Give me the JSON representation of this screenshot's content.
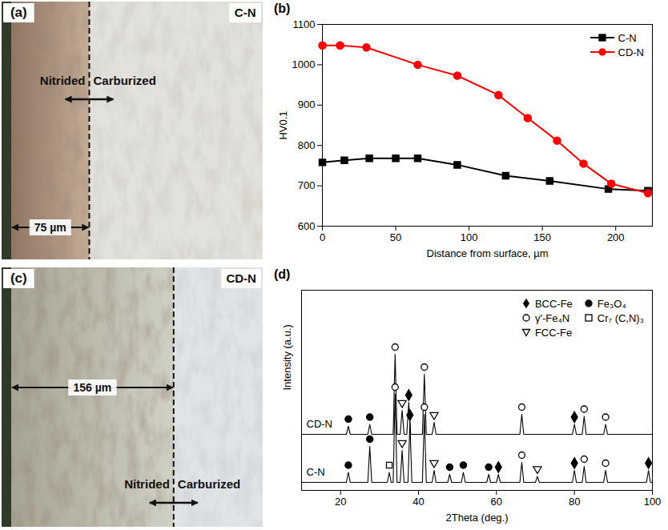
{
  "panels": [
    {
      "letter": "(a)",
      "sample": "C-N",
      "left_label": "Nitrided",
      "right_label": "Carburized",
      "depth": 75,
      "depth_label": "75 µm"
    },
    {
      "letter": "(c)",
      "sample": "CD-N",
      "left_label": "Nitrided",
      "right_label": "Carburized",
      "depth": 156,
      "depth_label": "156 µm"
    }
  ],
  "chart_data": [
    {
      "letter": "(b)",
      "type": "line",
      "x_label": "Distance from surface, µm",
      "y_label": "HV0.1",
      "xlim": [
        0,
        225
      ],
      "xticks": [
        0,
        50,
        100,
        150,
        200
      ],
      "ylim": [
        600,
        1100
      ],
      "yticks": [
        600,
        700,
        800,
        900,
        1000,
        1100
      ],
      "grid": false,
      "legend": "top-right",
      "series": [
        {
          "name": "C-N",
          "color": "#000000",
          "marker": "square",
          "x": [
            0,
            15,
            32,
            50,
            65,
            92,
            125,
            155,
            195,
            222
          ],
          "values": [
            758,
            763,
            768,
            768,
            768,
            752,
            725,
            712,
            692,
            688
          ]
        },
        {
          "name": "CD-N",
          "color": "#ff0000",
          "marker": "circle",
          "x": [
            0,
            12,
            30,
            65,
            92,
            120,
            140,
            160,
            178,
            197,
            222
          ],
          "values": [
            1048,
            1048,
            1043,
            1000,
            973,
            925,
            868,
            812,
            755,
            705,
            682
          ]
        }
      ]
    },
    {
      "letter": "(d)",
      "type": "line",
      "x_label": "2Theta (deg.)",
      "y_label": "Intensity (a.u.)",
      "xlim": [
        10,
        100
      ],
      "xticks": [
        20,
        40,
        60,
        80,
        100
      ],
      "ylim": [
        0,
        100
      ],
      "yticks": [],
      "tick_labels": "x",
      "grid": false,
      "legend": "top-right",
      "phases": [
        {
          "name": "BCC-Fe",
          "marker": "diamond"
        },
        {
          "name": "Fe₃O₄",
          "marker": "circle"
        },
        {
          "name": "γ'-Fe₄N",
          "marker": "open-circle"
        },
        {
          "name": "Cr₇ (C,N)₃",
          "marker": "open-square"
        },
        {
          "name": "FCC-Fe",
          "marker": "open-triangle-down"
        }
      ],
      "series": [
        {
          "name": "CD-N",
          "color": "#000000",
          "x": [
            10,
            21.5,
            22,
            22.5,
            27,
            27.5,
            28,
            33.5,
            34,
            34.5,
            35.3,
            35.8,
            36.3,
            37,
            37.5,
            38,
            41,
            41.5,
            42,
            43.5,
            44,
            44.5,
            66,
            66.5,
            67,
            79.5,
            80,
            80.5,
            82,
            82.5,
            83,
            87.5,
            88,
            88.5,
            100
          ],
          "values": [
            28,
            28,
            32,
            28,
            28,
            33,
            28,
            28,
            68,
            28,
            28,
            40,
            28,
            28,
            44,
            28,
            28,
            58,
            28,
            28,
            34,
            28,
            28,
            38,
            28,
            28,
            33,
            28,
            28,
            37,
            28,
            28,
            33,
            28,
            28
          ],
          "peaks": {
            "x": [
              22,
              27.5,
              34,
              35.8,
              37.5,
              41.5,
              44,
              66.5,
              80,
              82.5,
              88
            ],
            "phases": [
              "Fe₃O₄",
              "Fe₃O₄",
              "γ'-Fe₄N",
              "FCC-Fe",
              "BCC-Fe",
              "γ'-Fe₄N",
              "FCC-Fe",
              "γ'-Fe₄N",
              "BCC-Fe",
              "γ'-Fe₄N",
              "γ'-Fe₄N"
            ]
          }
        },
        {
          "name": "C-N",
          "color": "#000000",
          "x": [
            10,
            21.5,
            22,
            22.5,
            27,
            27.5,
            28,
            32,
            32.5,
            33,
            33.5,
            34,
            34.5,
            35.3,
            35.8,
            36.3,
            37.3,
            37.8,
            38.3,
            41,
            41.5,
            42,
            43.5,
            44,
            44.5,
            47.5,
            48,
            48.5,
            51,
            51.5,
            52,
            57.5,
            58,
            58.5,
            60,
            60.5,
            61,
            66,
            66.5,
            67,
            70,
            70.5,
            71,
            79.5,
            80,
            80.5,
            82,
            82.5,
            83,
            87.5,
            88,
            88.5,
            98.5,
            99,
            99.5,
            100
          ],
          "values": [
            4,
            4,
            9,
            4,
            4,
            22,
            4,
            4,
            9,
            4,
            4,
            48,
            4,
            4,
            20,
            4,
            4,
            34,
            4,
            4,
            38,
            4,
            4,
            10,
            4,
            4,
            8,
            4,
            4,
            9,
            4,
            4,
            8,
            4,
            4,
            8,
            4,
            4,
            14,
            4,
            4,
            7,
            4,
            4,
            10,
            4,
            4,
            12,
            4,
            4,
            10,
            4,
            4,
            10,
            4,
            4
          ],
          "peaks": {
            "x": [
              22,
              27.5,
              32.5,
              34,
              35.8,
              37.8,
              41.5,
              44,
              48,
              51.5,
              58,
              60.5,
              66.5,
              70.5,
              80,
              82.5,
              88,
              99
            ],
            "phases": [
              "Fe₃O₄",
              "Fe₃O₄",
              "Cr₇ (C,N)₃",
              "γ'-Fe₄N",
              "FCC-Fe",
              "BCC-Fe",
              "γ'-Fe₄N",
              "FCC-Fe",
              "Fe₃O₄",
              "Fe₃O₄",
              "Fe₃O₄",
              "BCC-Fe",
              "γ'-Fe₄N",
              "FCC-Fe",
              "BCC-Fe",
              "γ'-Fe₄N",
              "γ'-Fe₄N",
              "BCC-Fe"
            ]
          }
        }
      ]
    }
  ]
}
